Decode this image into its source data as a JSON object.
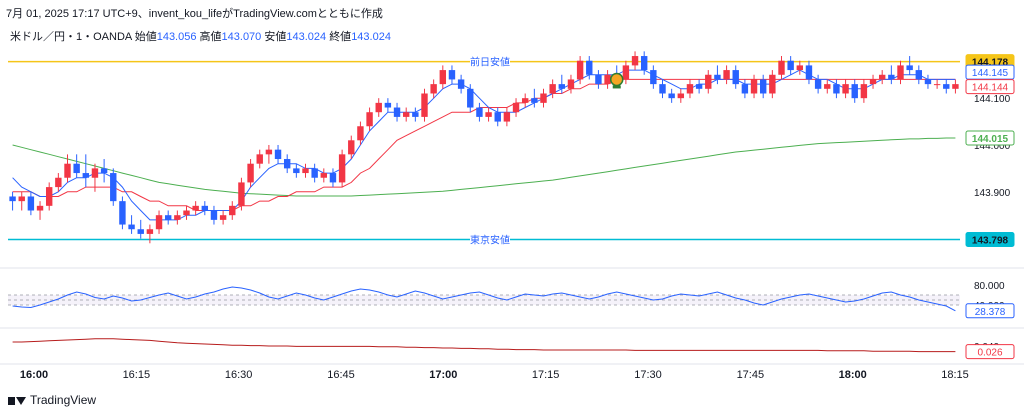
{
  "header": {
    "text": "7月 01, 2025 17:17 UTC+9、invent_kou_lifeがTradingView.comとともに作成"
  },
  "symbol": {
    "name": "米ドル／円・1・OANDA",
    "open_label": "始値",
    "open": "143.056",
    "high_label": "高値",
    "high": "143.070",
    "low_label": "安値",
    "low": "143.024",
    "close_label": "終値",
    "close": "143.024"
  },
  "footer": {
    "brand": "TradingView"
  },
  "colors": {
    "up": "#f23645",
    "down": "#2962ff",
    "yellow_line": "#f5c518",
    "cyan_line": "#00bcd4",
    "ma_fast": "#2962ff",
    "ma_slow": "#f23645",
    "ma_long": "#4caf50",
    "rsi": "#2962ff",
    "lower": "#b71c1c"
  },
  "chart_data": {
    "type": "candlestick",
    "price_axis": {
      "ticks": [
        "144.100",
        "144.000",
        "143.900"
      ],
      "range": [
        143.75,
        144.22
      ]
    },
    "time_axis": {
      "ticks": [
        "16:00",
        "16:15",
        "16:30",
        "16:45",
        "17:00",
        "17:15",
        "17:30",
        "17:45",
        "18:00",
        "18:15"
      ],
      "bold": [
        "16:00",
        "17:00",
        "18:00"
      ]
    },
    "levels": [
      {
        "label": "前日安値",
        "value": 144.178,
        "tag": "144.178",
        "color": "yellow"
      },
      {
        "label": "東京安値",
        "value": 143.798,
        "tag": "143.798",
        "color": "cyan"
      }
    ],
    "price_tags": [
      {
        "value": 144.145,
        "tag": "144.145",
        "color": "blue"
      },
      {
        "value": 144.144,
        "tag": "144.144",
        "color": "red"
      },
      {
        "value": 144.015,
        "tag": "144.015",
        "color": "green"
      }
    ],
    "candles": [
      [
        143.89,
        143.9,
        143.86,
        143.88
      ],
      [
        143.88,
        143.9,
        143.86,
        143.89
      ],
      [
        143.89,
        143.9,
        143.85,
        143.86
      ],
      [
        143.86,
        143.88,
        143.84,
        143.87
      ],
      [
        143.87,
        143.92,
        143.86,
        143.91
      ],
      [
        143.91,
        143.94,
        143.9,
        143.93
      ],
      [
        143.93,
        143.98,
        143.92,
        143.96
      ],
      [
        143.96,
        143.98,
        143.93,
        143.94
      ],
      [
        143.94,
        143.98,
        143.91,
        143.93
      ],
      [
        143.93,
        143.96,
        143.9,
        143.95
      ],
      [
        143.95,
        143.97,
        143.92,
        143.94
      ],
      [
        143.94,
        143.95,
        143.87,
        143.88
      ],
      [
        143.88,
        143.89,
        143.82,
        143.83
      ],
      [
        143.83,
        143.85,
        143.81,
        143.82
      ],
      [
        143.82,
        143.84,
        143.8,
        143.81
      ],
      [
        143.81,
        143.83,
        143.79,
        143.82
      ],
      [
        143.82,
        143.86,
        143.81,
        143.85
      ],
      [
        143.85,
        143.86,
        143.83,
        143.84
      ],
      [
        143.84,
        143.86,
        143.83,
        143.85
      ],
      [
        143.85,
        143.87,
        143.84,
        143.86
      ],
      [
        143.86,
        143.88,
        143.85,
        143.87
      ],
      [
        143.87,
        143.88,
        143.85,
        143.86
      ],
      [
        143.86,
        143.87,
        143.83,
        143.84
      ],
      [
        143.84,
        143.86,
        143.83,
        143.85
      ],
      [
        143.85,
        143.88,
        143.84,
        143.87
      ],
      [
        143.87,
        143.93,
        143.86,
        143.92
      ],
      [
        143.92,
        143.97,
        143.91,
        143.96
      ],
      [
        143.96,
        143.99,
        143.95,
        143.98
      ],
      [
        143.98,
        144.0,
        143.96,
        143.99
      ],
      [
        143.99,
        144.0,
        143.96,
        143.97
      ],
      [
        143.97,
        143.98,
        143.94,
        143.95
      ],
      [
        143.95,
        143.96,
        143.93,
        143.94
      ],
      [
        143.94,
        143.96,
        143.93,
        143.95
      ],
      [
        143.95,
        143.96,
        143.92,
        143.93
      ],
      [
        143.93,
        143.95,
        143.92,
        143.94
      ],
      [
        143.94,
        143.95,
        143.91,
        143.92
      ],
      [
        143.92,
        143.99,
        143.91,
        143.98
      ],
      [
        143.98,
        144.02,
        143.97,
        144.01
      ],
      [
        144.01,
        144.05,
        144.0,
        144.04
      ],
      [
        144.04,
        144.08,
        144.03,
        144.07
      ],
      [
        144.07,
        144.1,
        144.06,
        144.09
      ],
      [
        144.09,
        144.1,
        144.07,
        144.08
      ],
      [
        144.08,
        144.09,
        144.05,
        144.06
      ],
      [
        144.06,
        144.08,
        144.05,
        144.07
      ],
      [
        144.07,
        144.08,
        144.05,
        144.06
      ],
      [
        144.06,
        144.12,
        144.05,
        144.11
      ],
      [
        144.11,
        144.14,
        144.1,
        144.13
      ],
      [
        144.13,
        144.17,
        144.12,
        144.16
      ],
      [
        144.16,
        144.17,
        144.13,
        144.14
      ],
      [
        144.14,
        144.15,
        144.11,
        144.12
      ],
      [
        144.12,
        144.13,
        144.07,
        144.08
      ],
      [
        144.08,
        144.09,
        144.05,
        144.06
      ],
      [
        144.06,
        144.08,
        144.05,
        144.07
      ],
      [
        144.07,
        144.08,
        144.04,
        144.05
      ],
      [
        144.05,
        144.08,
        144.04,
        144.07
      ],
      [
        144.07,
        144.1,
        144.06,
        144.09
      ],
      [
        144.09,
        144.11,
        144.08,
        144.1
      ],
      [
        144.1,
        144.12,
        144.08,
        144.09
      ],
      [
        144.09,
        144.12,
        144.08,
        144.11
      ],
      [
        144.11,
        144.14,
        144.1,
        144.13
      ],
      [
        144.13,
        144.15,
        144.11,
        144.12
      ],
      [
        144.12,
        144.15,
        144.11,
        144.14
      ],
      [
        144.14,
        144.19,
        144.13,
        144.18
      ],
      [
        144.18,
        144.19,
        144.14,
        144.15
      ],
      [
        144.15,
        144.16,
        144.12,
        144.13
      ],
      [
        144.13,
        144.16,
        144.12,
        144.15
      ],
      [
        144.15,
        144.17,
        144.13,
        144.14
      ],
      [
        144.14,
        144.18,
        144.13,
        144.17
      ],
      [
        144.17,
        144.2,
        144.16,
        144.19
      ],
      [
        144.19,
        144.2,
        144.15,
        144.16
      ],
      [
        144.16,
        144.17,
        144.12,
        144.13
      ],
      [
        144.13,
        144.14,
        144.1,
        144.11
      ],
      [
        144.11,
        144.12,
        144.09,
        144.1
      ],
      [
        144.1,
        144.12,
        144.09,
        144.11
      ],
      [
        144.11,
        144.14,
        144.1,
        144.13
      ],
      [
        144.13,
        144.14,
        144.11,
        144.12
      ],
      [
        144.12,
        144.16,
        144.11,
        144.15
      ],
      [
        144.15,
        144.17,
        144.13,
        144.14
      ],
      [
        144.14,
        144.17,
        144.13,
        144.16
      ],
      [
        144.16,
        144.17,
        144.12,
        144.13
      ],
      [
        144.13,
        144.14,
        144.1,
        144.11
      ],
      [
        144.11,
        144.15,
        144.1,
        144.14
      ],
      [
        144.14,
        144.15,
        144.1,
        144.11
      ],
      [
        144.11,
        144.16,
        144.1,
        144.15
      ],
      [
        144.15,
        144.19,
        144.14,
        144.18
      ],
      [
        144.18,
        144.19,
        144.15,
        144.16
      ],
      [
        144.16,
        144.18,
        144.15,
        144.17
      ],
      [
        144.17,
        144.18,
        144.13,
        144.14
      ],
      [
        144.14,
        144.15,
        144.11,
        144.12
      ],
      [
        144.12,
        144.14,
        144.11,
        144.13
      ],
      [
        144.13,
        144.14,
        144.1,
        144.11
      ],
      [
        144.11,
        144.14,
        144.1,
        144.13
      ],
      [
        144.13,
        144.14,
        144.09,
        144.1
      ],
      [
        144.1,
        144.14,
        144.09,
        144.13
      ],
      [
        144.13,
        144.15,
        144.12,
        144.14
      ],
      [
        144.14,
        144.16,
        144.13,
        144.15
      ],
      [
        144.15,
        144.17,
        144.13,
        144.14
      ],
      [
        144.14,
        144.18,
        144.13,
        144.17
      ],
      [
        144.17,
        144.19,
        144.15,
        144.16
      ],
      [
        144.16,
        144.17,
        144.13,
        144.14
      ],
      [
        144.14,
        144.15,
        144.12,
        144.13
      ],
      [
        144.13,
        144.14,
        144.12,
        144.13
      ],
      [
        144.13,
        144.14,
        144.11,
        144.12
      ],
      [
        144.12,
        144.14,
        144.11,
        144.13
      ]
    ],
    "ma_fast": [
      143.93,
      143.91,
      143.9,
      143.89,
      143.89,
      143.9,
      143.92,
      143.93,
      143.93,
      143.94,
      143.94,
      143.93,
      143.91,
      143.88,
      143.86,
      143.84,
      143.84,
      143.84,
      143.84,
      143.85,
      143.85,
      143.86,
      143.86,
      143.86,
      143.86,
      143.88,
      143.91,
      143.93,
      143.95,
      143.96,
      143.96,
      143.96,
      143.95,
      143.95,
      143.94,
      143.94,
      143.95,
      143.97,
      144.0,
      144.03,
      144.05,
      144.07,
      144.07,
      144.07,
      144.07,
      144.08,
      144.1,
      144.12,
      144.13,
      144.13,
      144.12,
      144.1,
      144.08,
      144.07,
      144.07,
      144.07,
      144.08,
      144.09,
      144.1,
      144.11,
      144.12,
      144.13,
      144.14,
      144.15,
      144.15,
      144.15,
      144.15,
      144.16,
      144.16,
      144.16,
      144.15,
      144.14,
      144.13,
      144.12,
      144.12,
      144.13,
      144.13,
      144.14,
      144.14,
      144.14,
      144.13,
      144.13,
      144.13,
      144.13,
      144.14,
      144.15,
      144.16,
      144.15,
      144.14,
      144.14,
      144.13,
      144.12,
      144.12,
      144.12,
      144.13,
      144.14,
      144.14,
      144.15,
      144.15,
      144.15,
      144.14,
      144.14,
      144.14,
      144.14
    ],
    "ma_slow": [
      143.9,
      143.9,
      143.9,
      143.89,
      143.89,
      143.89,
      143.9,
      143.9,
      143.91,
      143.91,
      143.91,
      143.91,
      143.9,
      143.9,
      143.89,
      143.88,
      143.88,
      143.87,
      143.87,
      143.87,
      143.86,
      143.86,
      143.86,
      143.86,
      143.86,
      143.87,
      143.87,
      143.88,
      143.88,
      143.89,
      143.89,
      143.9,
      143.9,
      143.9,
      143.91,
      143.91,
      143.91,
      143.92,
      143.94,
      143.95,
      143.97,
      143.99,
      144.01,
      144.02,
      144.03,
      144.04,
      144.05,
      144.06,
      144.07,
      144.07,
      144.07,
      144.08,
      144.08,
      144.08,
      144.08,
      144.09,
      144.09,
      144.1,
      144.1,
      144.11,
      144.11,
      144.12,
      144.12,
      144.13,
      144.13,
      144.13,
      144.14,
      144.14,
      144.14,
      144.14,
      144.14,
      144.14,
      144.14,
      144.14,
      144.14,
      144.14,
      144.14,
      144.14,
      144.14,
      144.14,
      144.14,
      144.14,
      144.14,
      144.14,
      144.14,
      144.14,
      144.14,
      144.14,
      144.14,
      144.14,
      144.14,
      144.14,
      144.14,
      144.14,
      144.14,
      144.14,
      144.14,
      144.14,
      144.14,
      144.14,
      144.14,
      144.14,
      144.14,
      144.14
    ],
    "ma_long": [
      144.0,
      143.995,
      143.99,
      143.985,
      143.98,
      143.975,
      143.97,
      143.965,
      143.96,
      143.955,
      143.95,
      143.945,
      143.94,
      143.935,
      143.93,
      143.925,
      143.92,
      143.917,
      143.914,
      143.911,
      143.908,
      143.905,
      143.903,
      143.901,
      143.899,
      143.897,
      143.896,
      143.895,
      143.894,
      143.893,
      143.892,
      143.891,
      143.891,
      143.891,
      143.891,
      143.891,
      143.891,
      143.891,
      143.892,
      143.893,
      143.894,
      143.895,
      143.896,
      143.897,
      143.898,
      143.899,
      143.9,
      143.901,
      143.903,
      143.905,
      143.907,
      143.909,
      143.911,
      143.913,
      143.915,
      143.917,
      143.919,
      143.921,
      143.923,
      143.925,
      143.928,
      143.931,
      143.934,
      143.937,
      143.94,
      143.943,
      143.946,
      143.949,
      143.952,
      143.955,
      143.958,
      143.961,
      143.964,
      143.967,
      143.97,
      143.973,
      143.976,
      143.979,
      143.982,
      143.985,
      143.987,
      143.989,
      143.991,
      143.993,
      143.995,
      143.997,
      143.999,
      144.001,
      144.003,
      144.004,
      144.005,
      144.006,
      144.007,
      144.008,
      144.009,
      144.01,
      144.011,
      144.012,
      144.013,
      144.013,
      144.014,
      144.014,
      144.015,
      144.015
    ],
    "rsi": {
      "ticks": [
        "80.000",
        "40.000"
      ],
      "range": [
        0,
        100
      ],
      "last": "28.378",
      "values": [
        38,
        36,
        35,
        40,
        46,
        52,
        60,
        66,
        62,
        55,
        52,
        58,
        54,
        48,
        50,
        55,
        60,
        64,
        58,
        52,
        56,
        62,
        66,
        72,
        76,
        74,
        70,
        64,
        56,
        52,
        58,
        64,
        60,
        54,
        50,
        56,
        62,
        68,
        72,
        70,
        66,
        60,
        56,
        62,
        68,
        64,
        58,
        52,
        56,
        60,
        64,
        66,
        60,
        54,
        50,
        56,
        62,
        60,
        58,
        62,
        64,
        60,
        56,
        52,
        56,
        62,
        66,
        62,
        58,
        54,
        50,
        52,
        58,
        62,
        60,
        58,
        62,
        66,
        60,
        54,
        50,
        44,
        40,
        46,
        52,
        56,
        60,
        62,
        58,
        54,
        50,
        46,
        48,
        52,
        58,
        64,
        66,
        60,
        56,
        50,
        46,
        42,
        38,
        28.378
      ]
    },
    "lower_indicator": {
      "ticks": [
        "0.040"
      ],
      "range": [
        0.0,
        0.08
      ],
      "last": "0.026",
      "values": [
        0.05,
        0.05,
        0.051,
        0.052,
        0.053,
        0.054,
        0.055,
        0.056,
        0.057,
        0.058,
        0.058,
        0.058,
        0.057,
        0.056,
        0.055,
        0.054,
        0.052,
        0.05,
        0.048,
        0.047,
        0.046,
        0.045,
        0.044,
        0.043,
        0.042,
        0.042,
        0.041,
        0.041,
        0.04,
        0.04,
        0.04,
        0.039,
        0.039,
        0.039,
        0.039,
        0.039,
        0.039,
        0.039,
        0.039,
        0.039,
        0.038,
        0.038,
        0.038,
        0.037,
        0.037,
        0.036,
        0.036,
        0.035,
        0.035,
        0.034,
        0.034,
        0.033,
        0.033,
        0.032,
        0.032,
        0.031,
        0.031,
        0.031,
        0.03,
        0.03,
        0.03,
        0.03,
        0.03,
        0.03,
        0.03,
        0.03,
        0.03,
        0.03,
        0.029,
        0.029,
        0.029,
        0.029,
        0.029,
        0.029,
        0.029,
        0.029,
        0.029,
        0.029,
        0.029,
        0.029,
        0.029,
        0.029,
        0.029,
        0.029,
        0.029,
        0.029,
        0.029,
        0.029,
        0.029,
        0.028,
        0.028,
        0.028,
        0.028,
        0.028,
        0.027,
        0.027,
        0.027,
        0.027,
        0.027,
        0.026,
        0.026,
        0.026,
        0.026,
        0.026
      ]
    }
  }
}
